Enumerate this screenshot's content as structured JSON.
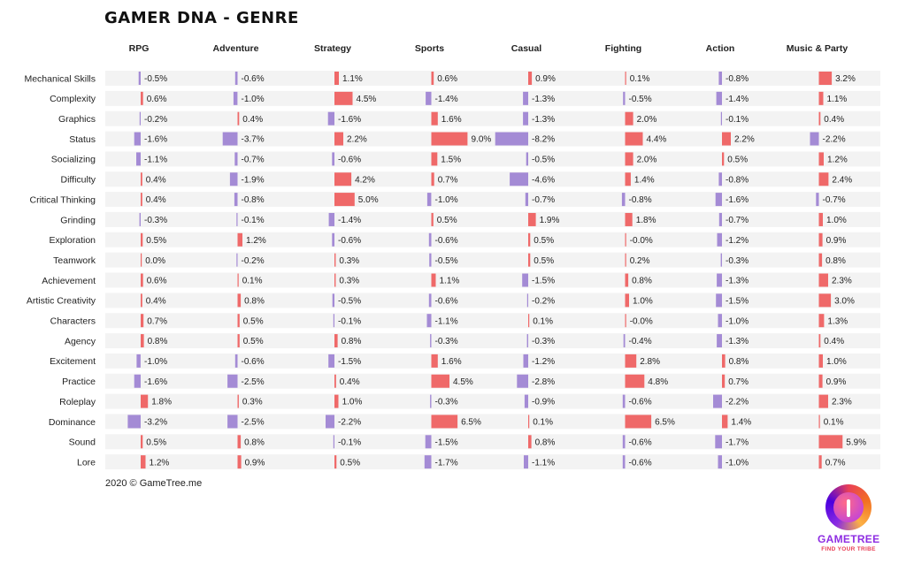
{
  "chart_data": {
    "type": "bar",
    "title": "GAMER DNA - GENRE",
    "value_suffix": "%",
    "positive_color": "#ee5a5a",
    "negative_color": "#9b7fd1",
    "columns": [
      "RPG",
      "Adventure",
      "Strategy",
      "Sports",
      "Casual",
      "Fighting",
      "Action",
      "Music & Party"
    ],
    "rows": [
      "Mechanical Skills",
      "Complexity",
      "Graphics",
      "Status",
      "Socializing",
      "Difficulty",
      "Critical Thinking",
      "Grinding",
      "Exploration",
      "Teamwork",
      "Achievement",
      "Artistic Creativity",
      "Characters",
      "Agency",
      "Excitement",
      "Practice",
      "Roleplay",
      "Dominance",
      "Sound",
      "Lore"
    ],
    "values": [
      [
        -0.5,
        -0.6,
        1.1,
        0.6,
        0.9,
        0.1,
        -0.8,
        3.2
      ],
      [
        0.6,
        -1.0,
        4.5,
        -1.4,
        -1.3,
        -0.5,
        -1.4,
        1.1
      ],
      [
        -0.2,
        0.4,
        -1.6,
        1.6,
        -1.3,
        2.0,
        -0.1,
        0.4
      ],
      [
        -1.6,
        -3.7,
        2.2,
        9.0,
        -8.2,
        4.4,
        2.2,
        -2.2
      ],
      [
        -1.1,
        -0.7,
        -0.6,
        1.5,
        -0.5,
        2.0,
        0.5,
        1.2
      ],
      [
        0.4,
        -1.9,
        4.2,
        0.7,
        -4.6,
        1.4,
        -0.8,
        2.4
      ],
      [
        0.4,
        -0.8,
        5.0,
        -1.0,
        -0.7,
        -0.8,
        -1.6,
        -0.7
      ],
      [
        -0.3,
        -0.1,
        -1.4,
        0.5,
        1.9,
        1.8,
        -0.7,
        1.0
      ],
      [
        0.5,
        1.2,
        -0.6,
        -0.6,
        0.5,
        -0.0,
        -1.2,
        0.9
      ],
      [
        0.0,
        -0.2,
        0.3,
        -0.5,
        0.5,
        0.2,
        -0.3,
        0.8
      ],
      [
        0.6,
        0.1,
        0.3,
        1.1,
        -1.5,
        0.8,
        -1.3,
        2.3
      ],
      [
        0.4,
        0.8,
        -0.5,
        -0.6,
        -0.2,
        1.0,
        -1.5,
        3.0
      ],
      [
        0.7,
        0.5,
        -0.1,
        -1.1,
        0.1,
        -0.0,
        -1.0,
        1.3
      ],
      [
        0.8,
        0.5,
        0.8,
        -0.3,
        -0.3,
        -0.4,
        -1.3,
        0.4
      ],
      [
        -1.0,
        -0.6,
        -1.5,
        1.6,
        -1.2,
        2.8,
        0.8,
        1.0
      ],
      [
        -1.6,
        -2.5,
        0.4,
        4.5,
        -2.8,
        4.8,
        0.7,
        0.9
      ],
      [
        1.8,
        0.3,
        1.0,
        -0.3,
        -0.9,
        -0.6,
        -2.2,
        2.3
      ],
      [
        -3.2,
        -2.5,
        -2.2,
        6.5,
        0.1,
        6.5,
        1.4,
        0.1
      ],
      [
        0.5,
        0.8,
        -0.1,
        -1.5,
        0.8,
        -0.6,
        -1.7,
        5.9
      ],
      [
        1.2,
        0.9,
        0.5,
        -1.7,
        -1.1,
        -0.6,
        -1.0,
        0.7
      ]
    ],
    "labels": [
      [
        "-0.5%",
        "-0.6%",
        "1.1%",
        "0.6%",
        "0.9%",
        "0.1%",
        "-0.8%",
        "3.2%"
      ],
      [
        "0.6%",
        "-1.0%",
        "4.5%",
        "-1.4%",
        "-1.3%",
        "-0.5%",
        "-1.4%",
        "1.1%"
      ],
      [
        "-0.2%",
        "0.4%",
        "-1.6%",
        "1.6%",
        "-1.3%",
        "2.0%",
        "-0.1%",
        "0.4%"
      ],
      [
        "-1.6%",
        "-3.7%",
        "2.2%",
        "9.0%",
        "-8.2%",
        "4.4%",
        "2.2%",
        "-2.2%"
      ],
      [
        "-1.1%",
        "-0.7%",
        "-0.6%",
        "1.5%",
        "-0.5%",
        "2.0%",
        "0.5%",
        "1.2%"
      ],
      [
        "0.4%",
        "-1.9%",
        "4.2%",
        "0.7%",
        "-4.6%",
        "1.4%",
        "-0.8%",
        "2.4%"
      ],
      [
        "0.4%",
        "-0.8%",
        "5.0%",
        "-1.0%",
        "-0.7%",
        "-0.8%",
        "-1.6%",
        "-0.7%"
      ],
      [
        "-0.3%",
        "-0.1%",
        "-1.4%",
        "0.5%",
        "1.9%",
        "1.8%",
        "-0.7%",
        "1.0%"
      ],
      [
        "0.5%",
        "1.2%",
        "-0.6%",
        "-0.6%",
        "0.5%",
        "-0.0%",
        "-1.2%",
        "0.9%"
      ],
      [
        "0.0%",
        "-0.2%",
        "0.3%",
        "-0.5%",
        "0.5%",
        "0.2%",
        "-0.3%",
        "0.8%"
      ],
      [
        "0.6%",
        "0.1%",
        "0.3%",
        "1.1%",
        "-1.5%",
        "0.8%",
        "-1.3%",
        "2.3%"
      ],
      [
        "0.4%",
        "0.8%",
        "-0.5%",
        "-0.6%",
        "-0.2%",
        "1.0%",
        "-1.5%",
        "3.0%"
      ],
      [
        "0.7%",
        "0.5%",
        "-0.1%",
        "-1.1%",
        "0.1%",
        "-0.0%",
        "-1.0%",
        "1.3%"
      ],
      [
        "0.8%",
        "0.5%",
        "0.8%",
        "-0.3%",
        "-0.3%",
        "-0.4%",
        "-1.3%",
        "0.4%"
      ],
      [
        "-1.0%",
        "-0.6%",
        "-1.5%",
        "1.6%",
        "-1.2%",
        "2.8%",
        "0.8%",
        "1.0%"
      ],
      [
        "-1.6%",
        "-2.5%",
        "0.4%",
        "4.5%",
        "-2.8%",
        "4.8%",
        "0.7%",
        "0.9%"
      ],
      [
        "1.8%",
        "0.3%",
        "1.0%",
        "-0.3%",
        "-0.9%",
        "-0.6%",
        "-2.2%",
        "2.3%"
      ],
      [
        "-3.2%",
        "-2.5%",
        "-2.2%",
        "6.5%",
        "0.1%",
        "6.5%",
        "1.4%",
        "0.1%"
      ],
      [
        "0.5%",
        "0.8%",
        "-0.1%",
        "-1.5%",
        "0.8%",
        "-0.6%",
        "-1.7%",
        "5.9%"
      ],
      [
        "1.2%",
        "0.9%",
        "0.5%",
        "-1.7%",
        "-1.1%",
        "-0.6%",
        "-1.0%",
        "0.7%"
      ]
    ]
  },
  "footer": "2020 © GameTree.me",
  "logo": {
    "name": "GAMETREE",
    "tagline": "FIND YOUR TRIBE"
  }
}
